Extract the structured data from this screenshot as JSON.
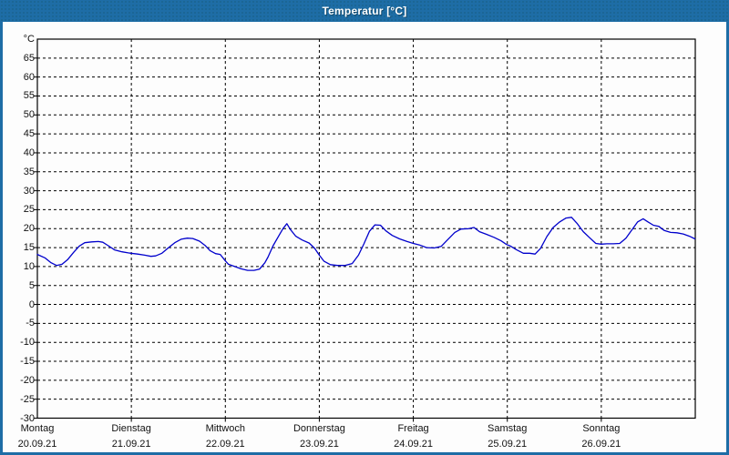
{
  "window": {
    "title": "Temperatur [°C]"
  },
  "colors": {
    "titlebar": "#1e6da6",
    "window_frame": "#1e6da6",
    "content_background": "#fdfdfd",
    "plot_border": "#000000",
    "gridline": "#000000",
    "series_line": "#0000cc",
    "axis_text": "#111111",
    "title_text": "#ffffff"
  },
  "chart_data": {
    "type": "line",
    "title": "Temperatur [°C]",
    "ylabel": "°C",
    "ylim": [
      -30,
      70
    ],
    "ytick_step": 5,
    "ytick_labels": [
      "65",
      "60",
      "55",
      "50",
      "45",
      "40",
      "35",
      "30",
      "25",
      "20",
      "15",
      "10",
      "5",
      "0",
      "-5",
      "-10",
      "-15",
      "-20",
      "-25",
      "-30"
    ],
    "grid": "dashed, every 5 °C horizontally, every day vertically",
    "legend_position": "none",
    "x_range_hours": [
      0,
      168
    ],
    "x_days": [
      {
        "name": "Montag",
        "date": "20.09.21"
      },
      {
        "name": "Dienstag",
        "date": "21.09.21"
      },
      {
        "name": "Mittwoch",
        "date": "22.09.21"
      },
      {
        "name": "Donnerstag",
        "date": "23.09.21"
      },
      {
        "name": "Freitag",
        "date": "24.09.21"
      },
      {
        "name": "Samstag",
        "date": "25.09.21"
      },
      {
        "name": "Sonntag",
        "date": "26.09.21"
      }
    ],
    "series": [
      {
        "name": "Temperatur",
        "color": "#0000cc",
        "points_hours_temp": [
          [
            0,
            13.2
          ],
          [
            1.9,
            12.3
          ],
          [
            3.5,
            11.0
          ],
          [
            4.9,
            10.3
          ],
          [
            6.3,
            10.6
          ],
          [
            7.7,
            11.8
          ],
          [
            9.3,
            13.8
          ],
          [
            10.7,
            15.4
          ],
          [
            12.1,
            16.3
          ],
          [
            13.9,
            16.5
          ],
          [
            15.6,
            16.6
          ],
          [
            16.7,
            16.4
          ],
          [
            18.1,
            15.5
          ],
          [
            19.7,
            14.4
          ],
          [
            21.6,
            13.9
          ],
          [
            23.2,
            13.6
          ],
          [
            23.9,
            13.5
          ],
          [
            25.6,
            13.3
          ],
          [
            27.4,
            13.0
          ],
          [
            29.0,
            12.7
          ],
          [
            30.2,
            12.8
          ],
          [
            31.8,
            13.5
          ],
          [
            33.5,
            15.0
          ],
          [
            35.1,
            16.3
          ],
          [
            36.7,
            17.2
          ],
          [
            38.3,
            17.5
          ],
          [
            39.7,
            17.4
          ],
          [
            41.4,
            16.7
          ],
          [
            42.8,
            15.6
          ],
          [
            44.1,
            14.2
          ],
          [
            45.5,
            13.4
          ],
          [
            46.7,
            13.2
          ],
          [
            47.9,
            11.6
          ],
          [
            48.8,
            10.6
          ],
          [
            50.4,
            10.0
          ],
          [
            52.0,
            9.4
          ],
          [
            53.7,
            9.0
          ],
          [
            55.3,
            9.0
          ],
          [
            56.7,
            9.3
          ],
          [
            58.1,
            11.0
          ],
          [
            58.9,
            12.5
          ],
          [
            60.2,
            15.5
          ],
          [
            61.6,
            18.0
          ],
          [
            62.7,
            20.0
          ],
          [
            63.7,
            21.3
          ],
          [
            64.6,
            19.8
          ],
          [
            66.0,
            18.0
          ],
          [
            67.6,
            17.0
          ],
          [
            69.4,
            16.2
          ],
          [
            70.8,
            14.8
          ],
          [
            72.0,
            13.0
          ],
          [
            73.2,
            11.4
          ],
          [
            74.8,
            10.5
          ],
          [
            76.6,
            10.3
          ],
          [
            78.5,
            10.3
          ],
          [
            80.4,
            10.8
          ],
          [
            82.0,
            13.0
          ],
          [
            83.4,
            16.0
          ],
          [
            84.8,
            19.3
          ],
          [
            86.2,
            21.0
          ],
          [
            87.6,
            20.9
          ],
          [
            89.0,
            19.4
          ],
          [
            90.6,
            18.2
          ],
          [
            92.5,
            17.3
          ],
          [
            94.4,
            16.6
          ],
          [
            96.0,
            16.1
          ],
          [
            97.6,
            15.7
          ],
          [
            99.4,
            15.0
          ],
          [
            101.3,
            14.9
          ],
          [
            103.1,
            15.3
          ],
          [
            104.7,
            17.0
          ],
          [
            106.6,
            19.0
          ],
          [
            108.2,
            19.9
          ],
          [
            110.1,
            20.0
          ],
          [
            111.5,
            20.3
          ],
          [
            112.9,
            19.2
          ],
          [
            114.7,
            18.5
          ],
          [
            116.6,
            17.7
          ],
          [
            118.4,
            16.8
          ],
          [
            119.8,
            15.8
          ],
          [
            120.8,
            15.4
          ],
          [
            122.4,
            14.4
          ],
          [
            124.1,
            13.5
          ],
          [
            125.7,
            13.5
          ],
          [
            127.1,
            13.3
          ],
          [
            128.5,
            14.8
          ],
          [
            130.1,
            17.9
          ],
          [
            131.7,
            20.3
          ],
          [
            133.4,
            21.8
          ],
          [
            135.0,
            22.8
          ],
          [
            136.4,
            23.0
          ],
          [
            137.8,
            21.4
          ],
          [
            139.4,
            19.2
          ],
          [
            141.0,
            17.6
          ],
          [
            142.6,
            16.1
          ],
          [
            144.0,
            15.9
          ],
          [
            145.4,
            16.0
          ],
          [
            147.1,
            16.0
          ],
          [
            148.7,
            16.1
          ],
          [
            150.3,
            17.5
          ],
          [
            151.9,
            19.8
          ],
          [
            153.3,
            21.8
          ],
          [
            154.7,
            22.6
          ],
          [
            155.9,
            21.8
          ],
          [
            157.3,
            20.9
          ],
          [
            158.7,
            20.6
          ],
          [
            160.1,
            19.5
          ],
          [
            161.7,
            19.0
          ],
          [
            163.3,
            18.9
          ],
          [
            164.9,
            18.6
          ],
          [
            166.5,
            18.0
          ],
          [
            167.9,
            17.3
          ]
        ]
      }
    ]
  }
}
